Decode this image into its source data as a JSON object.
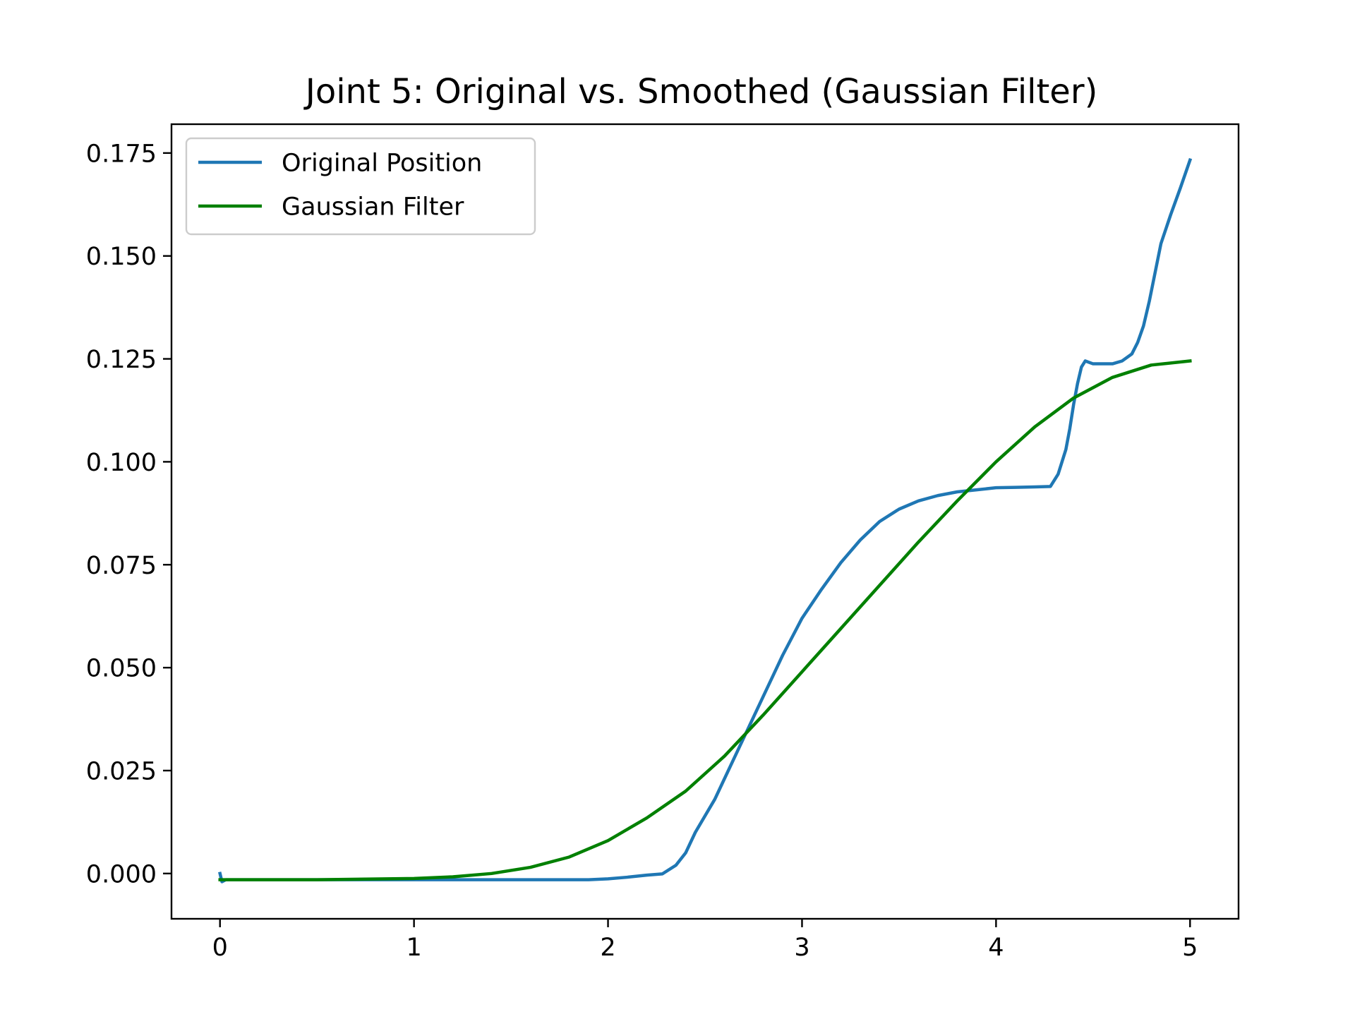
{
  "chart_data": {
    "type": "line",
    "title": "Joint 5: Original vs. Smoothed (Gaussian Filter)",
    "xlabel": "",
    "ylabel": "",
    "xlim": [
      -0.25,
      5.25
    ],
    "ylim": [
      -0.011,
      0.182
    ],
    "x_ticks": [
      0,
      1,
      2,
      3,
      4,
      5
    ],
    "x_tick_labels": [
      "0",
      "1",
      "2",
      "3",
      "4",
      "5"
    ],
    "y_ticks": [
      0.0,
      0.025,
      0.05,
      0.075,
      0.1,
      0.125,
      0.15,
      0.175
    ],
    "y_tick_labels": [
      "0.000",
      "0.025",
      "0.050",
      "0.075",
      "0.100",
      "0.125",
      "0.150",
      "0.175"
    ],
    "grid": false,
    "legend_position": "upper-left",
    "series": [
      {
        "name": "Original Position",
        "color": "#1f77b4",
        "points": [
          [
            0.0,
            0.0
          ],
          [
            0.01,
            -0.002
          ],
          [
            0.03,
            -0.0015
          ],
          [
            0.2,
            -0.0015
          ],
          [
            0.5,
            -0.0015
          ],
          [
            1.0,
            -0.0015
          ],
          [
            1.5,
            -0.0015
          ],
          [
            1.9,
            -0.0015
          ],
          [
            2.0,
            -0.0013
          ],
          [
            2.1,
            -0.0009
          ],
          [
            2.2,
            -0.0004
          ],
          [
            2.28,
            -0.0001
          ],
          [
            2.35,
            0.002
          ],
          [
            2.4,
            0.005
          ],
          [
            2.45,
            0.01
          ],
          [
            2.5,
            0.014
          ],
          [
            2.55,
            0.018
          ],
          [
            2.6,
            0.023
          ],
          [
            2.65,
            0.028
          ],
          [
            2.7,
            0.033
          ],
          [
            2.75,
            0.038
          ],
          [
            2.8,
            0.043
          ],
          [
            2.85,
            0.048
          ],
          [
            2.9,
            0.053
          ],
          [
            2.95,
            0.0575
          ],
          [
            3.0,
            0.062
          ],
          [
            3.1,
            0.069
          ],
          [
            3.2,
            0.0755
          ],
          [
            3.3,
            0.081
          ],
          [
            3.4,
            0.0855
          ],
          [
            3.5,
            0.0885
          ],
          [
            3.6,
            0.0905
          ],
          [
            3.7,
            0.0918
          ],
          [
            3.8,
            0.0927
          ],
          [
            3.9,
            0.0932
          ],
          [
            4.0,
            0.0937
          ],
          [
            4.1,
            0.0938
          ],
          [
            4.2,
            0.0939
          ],
          [
            4.28,
            0.094
          ],
          [
            4.32,
            0.097
          ],
          [
            4.36,
            0.103
          ],
          [
            4.38,
            0.108
          ],
          [
            4.4,
            0.114
          ],
          [
            4.42,
            0.119
          ],
          [
            4.44,
            0.123
          ],
          [
            4.46,
            0.1245
          ],
          [
            4.5,
            0.1238
          ],
          [
            4.6,
            0.1238
          ],
          [
            4.65,
            0.1245
          ],
          [
            4.7,
            0.1262
          ],
          [
            4.73,
            0.129
          ],
          [
            4.76,
            0.133
          ],
          [
            4.79,
            0.139
          ],
          [
            4.82,
            0.146
          ],
          [
            4.85,
            0.153
          ],
          [
            4.9,
            0.16
          ],
          [
            4.95,
            0.1665
          ],
          [
            5.0,
            0.1733
          ]
        ]
      },
      {
        "name": "Gaussian Filter",
        "color": "#008000",
        "points": [
          [
            0.0,
            -0.0015
          ],
          [
            0.5,
            -0.0015
          ],
          [
            1.0,
            -0.0012
          ],
          [
            1.2,
            -0.0008
          ],
          [
            1.4,
            0.0
          ],
          [
            1.6,
            0.0015
          ],
          [
            1.8,
            0.004
          ],
          [
            2.0,
            0.008
          ],
          [
            2.2,
            0.0135
          ],
          [
            2.4,
            0.02
          ],
          [
            2.6,
            0.0285
          ],
          [
            2.8,
            0.0385
          ],
          [
            3.0,
            0.049
          ],
          [
            3.2,
            0.0595
          ],
          [
            3.4,
            0.07
          ],
          [
            3.6,
            0.0805
          ],
          [
            3.8,
            0.0905
          ],
          [
            4.0,
            0.1
          ],
          [
            4.2,
            0.1085
          ],
          [
            4.4,
            0.1155
          ],
          [
            4.6,
            0.1205
          ],
          [
            4.8,
            0.1235
          ],
          [
            5.0,
            0.1245
          ]
        ]
      }
    ]
  }
}
